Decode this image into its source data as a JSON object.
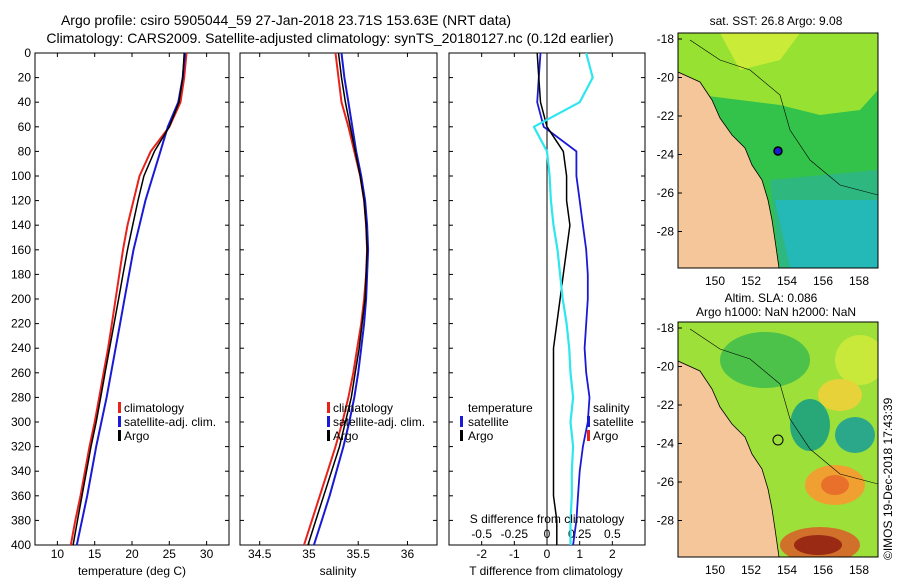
{
  "title": {
    "line1": "Argo profile: csiro 5905044_59 27-Jan-2018 23.71S 153.63E (NRT data)",
    "line2": "Climatology: CARS2009. Satellite-adjusted climatology: synTS_20180127.nc (0.12d earlier)"
  },
  "colors": {
    "climatology": "#e8231c",
    "satellite": "#1a1ad6",
    "argo": "#000000",
    "argo_sal": "#2ee6ee"
  },
  "chart_data": [
    {
      "type": "line",
      "xlabel": "temperature (deg C)",
      "xlim": [
        7,
        33
      ],
      "ylim": [
        400,
        0
      ],
      "xticks": [
        "10",
        "15",
        "20",
        "25",
        "30"
      ],
      "yticks": [
        "0",
        "20",
        "40",
        "60",
        "80",
        "100",
        "120",
        "140",
        "160",
        "180",
        "200",
        "220",
        "240",
        "260",
        "280",
        "300",
        "320",
        "340",
        "360",
        "380",
        "400"
      ],
      "legend": [
        "climatology",
        "satellite-adj. clim.",
        "Argo"
      ],
      "depth": [
        0,
        20,
        40,
        60,
        80,
        100,
        120,
        140,
        160,
        180,
        200,
        220,
        240,
        260,
        280,
        300,
        320,
        340,
        360,
        380,
        400
      ],
      "series": [
        {
          "name": "climatology",
          "values": [
            27.3,
            27.0,
            26.5,
            25.0,
            22.5,
            21.0,
            20.2,
            19.4,
            18.8,
            18.3,
            17.8,
            17.3,
            16.8,
            16.2,
            15.6,
            15.0,
            14.3,
            13.7,
            13.1,
            12.4,
            11.8
          ]
        },
        {
          "name": "satellite-adj. clim.",
          "values": [
            27.1,
            26.8,
            26.2,
            24.8,
            23.8,
            22.8,
            21.8,
            21.0,
            20.2,
            19.6,
            19.0,
            18.4,
            17.8,
            17.2,
            16.6,
            15.9,
            15.2,
            14.6,
            14.0,
            13.3,
            12.6
          ]
        },
        {
          "name": "Argo",
          "values": [
            27.0,
            26.8,
            26.3,
            25.0,
            23.0,
            21.6,
            20.8,
            20.1,
            19.4,
            18.8,
            18.2,
            17.6,
            17.0,
            16.4,
            15.8,
            15.2,
            14.5,
            13.9,
            13.3,
            12.7,
            12.1
          ]
        }
      ]
    },
    {
      "type": "line",
      "xlabel": "salinity",
      "xlim": [
        34.3,
        36.3
      ],
      "ylim": [
        400,
        0
      ],
      "xticks": [
        "34.5",
        "35",
        "35.5",
        "36"
      ],
      "legend": [
        "climatology",
        "satellite-adj. clim.",
        "Argo"
      ],
      "depth": [
        0,
        20,
        40,
        60,
        80,
        100,
        120,
        140,
        160,
        180,
        200,
        220,
        240,
        260,
        280,
        300,
        320,
        340,
        360,
        380,
        400
      ],
      "series": [
        {
          "name": "climatology",
          "values": [
            35.27,
            35.3,
            35.33,
            35.4,
            35.46,
            35.52,
            35.56,
            35.58,
            35.59,
            35.58,
            35.56,
            35.53,
            35.49,
            35.45,
            35.4,
            35.34,
            35.27,
            35.19,
            35.11,
            35.03,
            34.95
          ]
        },
        {
          "name": "satellite-adj. clim.",
          "values": [
            35.33,
            35.36,
            35.4,
            35.44,
            35.48,
            35.53,
            35.57,
            35.59,
            35.6,
            35.59,
            35.58,
            35.56,
            35.53,
            35.5,
            35.46,
            35.41,
            35.35,
            35.28,
            35.21,
            35.13,
            35.05
          ]
        },
        {
          "name": "Argo",
          "values": [
            35.3,
            35.33,
            35.37,
            35.42,
            35.47,
            35.52,
            35.56,
            35.58,
            35.59,
            35.58,
            35.57,
            35.54,
            35.51,
            35.47,
            35.43,
            35.37,
            35.31,
            35.23,
            35.15,
            35.07,
            34.99
          ]
        }
      ]
    },
    {
      "type": "line",
      "xlabel": "T difference from climatology",
      "x2label": "S difference from climatology",
      "xlim": [
        -3,
        3
      ],
      "ylim": [
        400,
        0
      ],
      "xticks": [
        "-2",
        "-1",
        "0",
        "1",
        "2"
      ],
      "x2ticks": [
        "-0.5",
        "-0.25",
        "0",
        "0.25",
        "0.5"
      ],
      "legend_temperature": {
        "heading": "temperature",
        "items": [
          "satellite",
          "Argo"
        ]
      },
      "legend_salinity": {
        "heading": "salinity",
        "items": [
          "satellite",
          "Argo"
        ]
      },
      "depth": [
        0,
        20,
        40,
        60,
        80,
        100,
        120,
        140,
        160,
        180,
        200,
        220,
        240,
        260,
        280,
        300,
        320,
        340,
        360,
        380,
        400
      ],
      "series": [
        {
          "name": "temperature satellite",
          "values": [
            -0.2,
            -0.25,
            -0.3,
            -0.1,
            0.9,
            0.9,
            1.0,
            1.1,
            1.2,
            1.25,
            1.25,
            1.2,
            1.15,
            1.2,
            1.3,
            1.25,
            1.1,
            1.0,
            0.95,
            0.9,
            0.8
          ]
        },
        {
          "name": "temperature Argo",
          "values": [
            -0.3,
            -0.25,
            -0.2,
            0,
            0.5,
            0.6,
            0.6,
            0.7,
            0.6,
            0.5,
            0.4,
            0.3,
            0.2,
            0.2,
            0.2,
            0.2,
            0.2,
            0.2,
            0.2,
            0.3,
            0.3
          ]
        },
        {
          "name": "salinity Argo",
          "values": [
            0.3,
            0.35,
            0.25,
            -0.1,
            0,
            0.02,
            0.03,
            0.05,
            0.08,
            0.1,
            0.12,
            0.15,
            0.17,
            0.18,
            0.2,
            0.18,
            0.2,
            0.19,
            0.19,
            0.18,
            0.18
          ]
        }
      ]
    }
  ],
  "maps": {
    "sst": {
      "title": "sat. SST: 26.8 Argo: 9.08",
      "lat_ticks": [
        "-18",
        "-20",
        "-22",
        "-24",
        "-26",
        "-28"
      ],
      "lon_ticks": [
        "150",
        "152",
        "154",
        "156",
        "158"
      ]
    },
    "sla": {
      "title_line1": "Altim. SLA: 0.086",
      "title_line2": "Argo h1000: NaN h2000: NaN",
      "lat_ticks": [
        "-18",
        "-20",
        "-22",
        "-24",
        "-26",
        "-28"
      ],
      "lon_ticks": [
        "150",
        "152",
        "154",
        "156",
        "158"
      ]
    }
  },
  "credit": "©IMOS 19-Dec-2018 17:43:39"
}
